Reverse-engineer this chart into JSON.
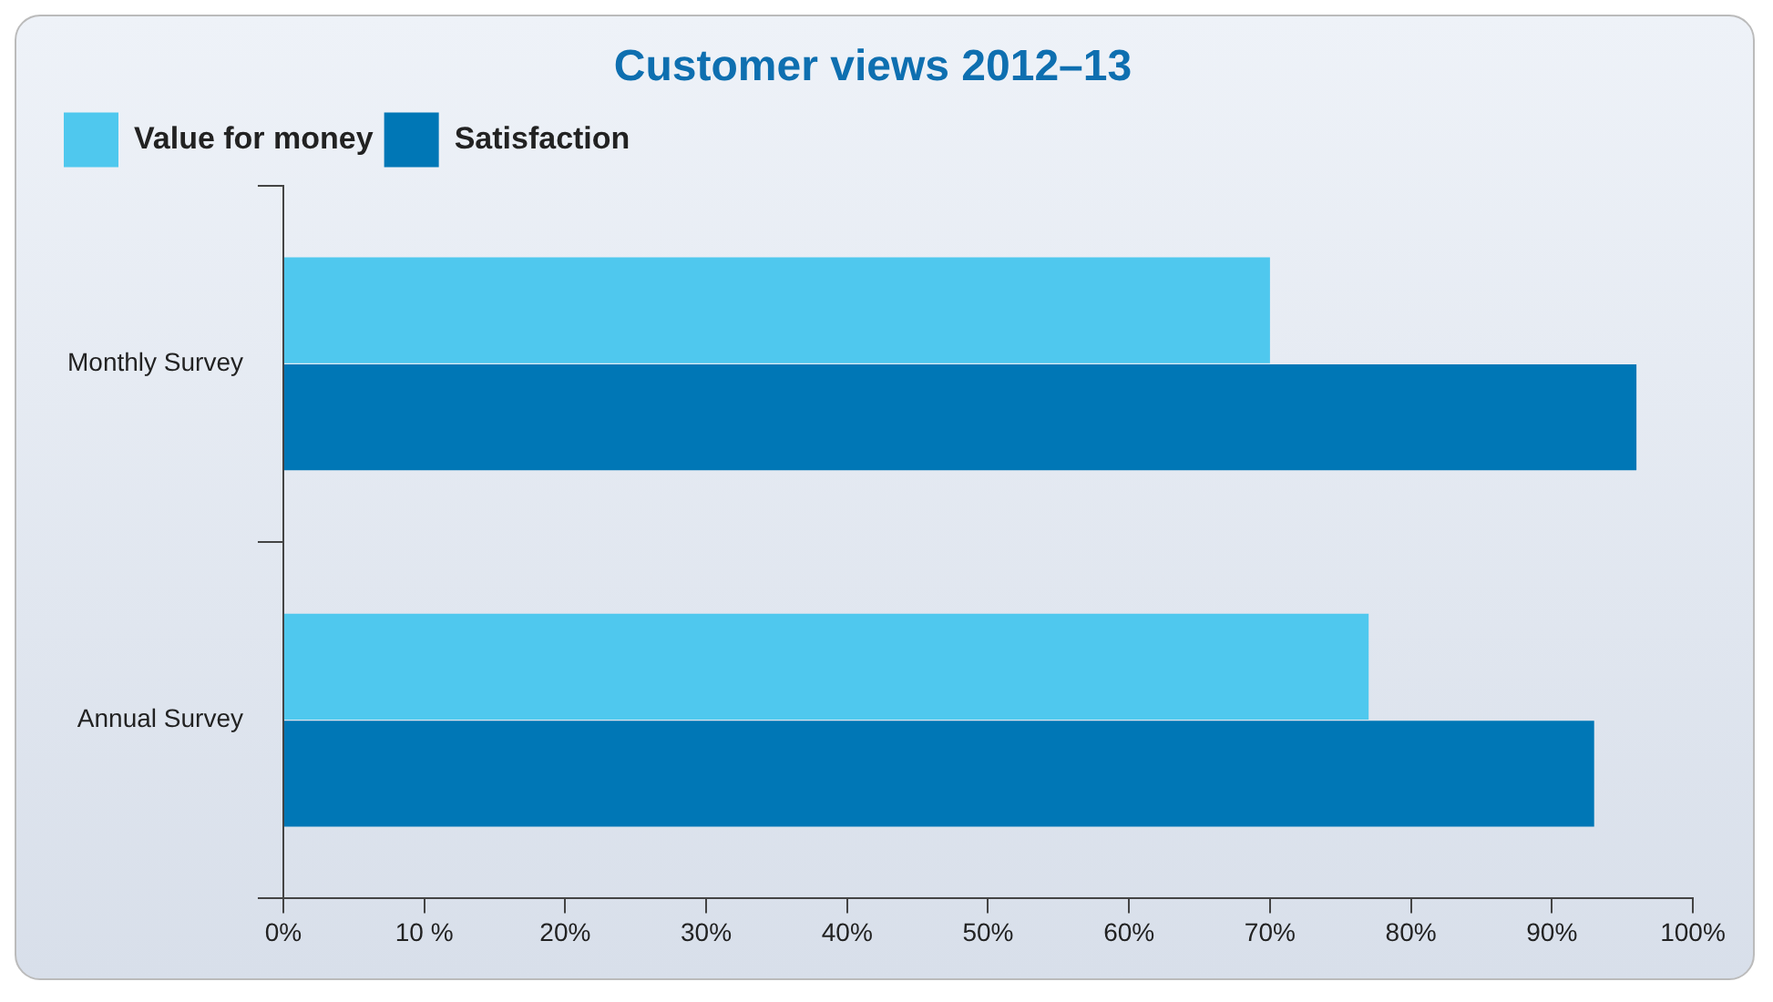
{
  "chart_data": {
    "type": "bar",
    "orientation": "horizontal",
    "title": "Customer views 2012–13",
    "categories": [
      "Monthly Survey",
      "Annual Survey"
    ],
    "series": [
      {
        "name": "Value for money",
        "color": "#4fc8ee",
        "values": [
          70,
          77
        ]
      },
      {
        "name": "Satisfaction",
        "color": "#0077b6",
        "values": [
          96,
          93
        ]
      }
    ],
    "xlim": [
      0,
      100
    ],
    "xticks": [
      {
        "value": 0,
        "label": "0%"
      },
      {
        "value": 10,
        "label": "10 %"
      },
      {
        "value": 20,
        "label": "20%"
      },
      {
        "value": 30,
        "label": "30%"
      },
      {
        "value": 40,
        "label": "40%"
      },
      {
        "value": 50,
        "label": "50%"
      },
      {
        "value": 60,
        "label": "60%"
      },
      {
        "value": 70,
        "label": "70%"
      },
      {
        "value": 80,
        "label": "80%"
      },
      {
        "value": 90,
        "label": "90%"
      },
      {
        "value": 100,
        "label": "100%"
      }
    ],
    "grid": false,
    "legend": "top left"
  }
}
